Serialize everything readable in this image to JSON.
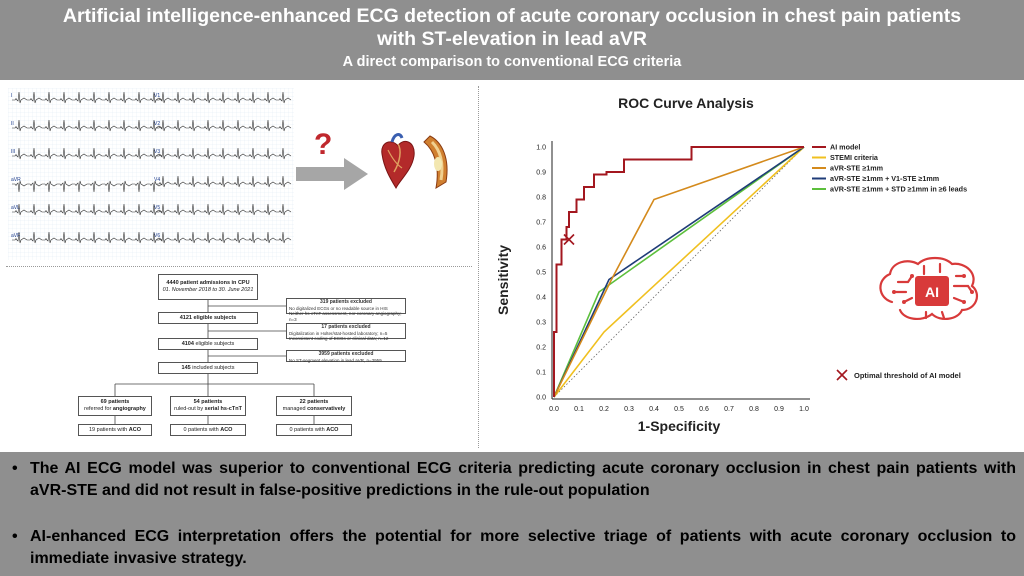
{
  "header": {
    "title_line1": "Artificial intelligence-enhanced ECG detection of acute coronary occlusion in chest pain patients",
    "title_line2": "with ST-elevation in lead aVR",
    "subtitle": "A direct comparison to conventional ECG criteria"
  },
  "ecg": {
    "leads_left": [
      "I",
      "II",
      "III",
      "aVR",
      "aVL",
      "aVF"
    ],
    "leads_right": [
      "V1",
      "V2",
      "V3",
      "V4",
      "V5",
      "V6"
    ],
    "question": "?"
  },
  "flowchart": {
    "top": {
      "title": "4440 patient admissions in CPU",
      "dates": "01. November 2018 to 30. June 2021"
    },
    "excl1": {
      "title": "319 patients excluded",
      "line1": "No digitalized ECGs or no readable source in HIS",
      "line2": "Neither hs-cTnT assessment, nor coronary angiography; n=3"
    },
    "elig1": {
      "num": "4121",
      "label": "eligible subjects"
    },
    "excl2": {
      "title": "17 patients excluded",
      "line1": "Digitalization in Holter/stat-hosted laboratory; n=5",
      "line2": "Inconsistent coding of ECGs or clinical data; n=12"
    },
    "elig2": {
      "num": "4104",
      "label": "eligible subjects"
    },
    "excl3": {
      "title": "3959 patients excluded",
      "line1": "No ST-segment elevation in lead aVR, n=3959"
    },
    "incl": {
      "num": "145",
      "label": "included subjects"
    },
    "branches": [
      {
        "line1": "69 patients",
        "line2": "referred for",
        "emph": "angiography",
        "result_num": "19 patients with",
        "result_emph": "ACO"
      },
      {
        "line1": "54 patients",
        "line2": "ruled-out by",
        "emph": "serial hs-cTnT",
        "result_num": "0 patients with",
        "result_emph": "ACO"
      },
      {
        "line1": "22 patients",
        "line2": "managed",
        "emph": "conservatively",
        "result_num": "0 patients with",
        "result_emph": "ACO"
      }
    ]
  },
  "chart_data": {
    "type": "line",
    "title": "ROC Curve Analysis",
    "xlabel": "1-Specificity",
    "ylabel": "Sensitivity",
    "xlim": [
      0,
      1
    ],
    "ylim": [
      0,
      1
    ],
    "x_ticks": [
      "0.0",
      "0.1",
      "0.2",
      "0.3",
      "0.4",
      "0.5",
      "0.6",
      "0.7",
      "0.8",
      "0.9",
      "1.0"
    ],
    "y_ticks": [
      "0.0",
      "0.1",
      "0.2",
      "0.3",
      "0.4",
      "0.5",
      "0.6",
      "0.7",
      "0.8",
      "0.9",
      "1.0"
    ],
    "grid": false,
    "legend_position": "top-right",
    "series": [
      {
        "name": "AI model",
        "color": "#a3171f",
        "x": [
          0,
          0,
          0.01,
          0.01,
          0.03,
          0.03,
          0.05,
          0.05,
          0.06,
          0.06,
          0.09,
          0.09,
          0.12,
          0.12,
          0.16,
          0.16,
          0.21,
          0.21,
          0.28,
          0.28,
          0.55,
          0.55,
          1.0
        ],
        "y": [
          0,
          0.26,
          0.26,
          0.53,
          0.53,
          0.63,
          0.63,
          0.68,
          0.68,
          0.74,
          0.74,
          0.79,
          0.79,
          0.84,
          0.84,
          0.89,
          0.89,
          0.9,
          0.9,
          0.95,
          0.95,
          1.0,
          1.0
        ]
      },
      {
        "name": "STEMI criteria",
        "color": "#f0c020",
        "x": [
          0,
          0.2,
          1.0
        ],
        "y": [
          0,
          0.26,
          1.0
        ]
      },
      {
        "name": "aVR-STE ≥1mm",
        "color": "#d48a1c",
        "x": [
          0,
          0.23,
          0.4,
          1.0
        ],
        "y": [
          0,
          0.47,
          0.79,
          1.0
        ]
      },
      {
        "name": "aVR-STE ≥1mm + V1-STE ≥1mm",
        "color": "#1f3c78",
        "x": [
          0,
          0.22,
          1.0
        ],
        "y": [
          0,
          0.47,
          1.0
        ]
      },
      {
        "name": "aVR-STE ≥1mm + STD ≥1mm in ≥6 leads",
        "color": "#5cbf3c",
        "x": [
          0,
          0.18,
          1.0
        ],
        "y": [
          0,
          0.42,
          1.0
        ]
      }
    ],
    "reference_line": {
      "x": [
        0,
        1
      ],
      "y": [
        0,
        1
      ],
      "style": "dotted"
    },
    "optimal_threshold": {
      "x": 0.06,
      "y": 0.63,
      "label": "Optimal threshold of AI model",
      "color": "#a3171f"
    }
  },
  "ai_logo": {
    "text": "AI",
    "color": "#d83a3a"
  },
  "bullets": [
    {
      "dot": "•",
      "text": "The AI ECG model was superior to conventional ECG criteria predicting acute coronary occlusion in chest pain patients with aVR-STE and did not result in false-positive predictions in the rule-out population"
    },
    {
      "dot": "•",
      "text": "AI-enhanced ECG interpretation offers the potential for more selective triage of patients with acute coronary occlusion to immediate invasive strategy."
    }
  ]
}
